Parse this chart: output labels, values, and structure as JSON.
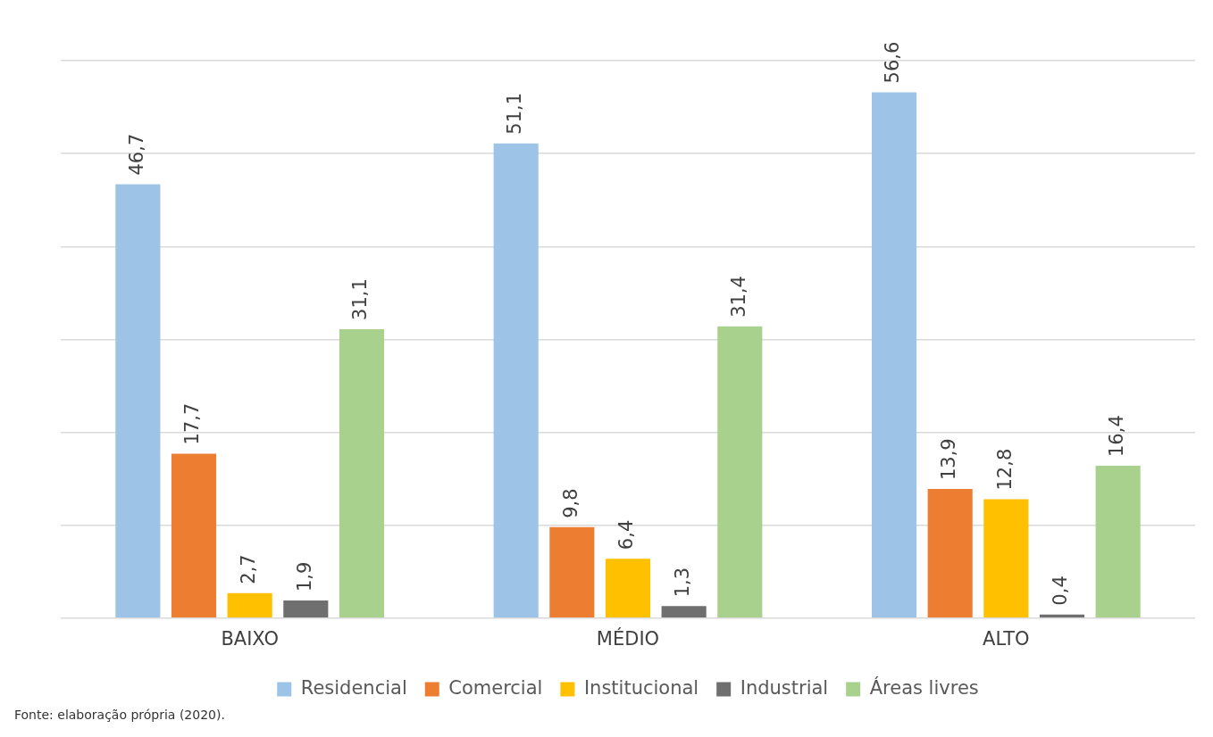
{
  "chart_data": {
    "type": "bar",
    "categories": [
      "BAIXO",
      "MÉDIO",
      "ALTO"
    ],
    "series": [
      {
        "name": "Residencial",
        "color": "#9dc3e6",
        "values": [
          46.7,
          51.1,
          56.6
        ],
        "value_labels": [
          "46,7",
          "51,1",
          "56,6"
        ]
      },
      {
        "name": "Comercial",
        "color": "#ed7d31",
        "values": [
          17.7,
          9.8,
          13.9
        ],
        "value_labels": [
          "17,7",
          "9,8",
          "13,9"
        ]
      },
      {
        "name": "Institucional",
        "color": "#ffc000",
        "values": [
          2.7,
          6.4,
          12.8
        ],
        "value_labels": [
          "2,7",
          "6,4",
          "12,8"
        ]
      },
      {
        "name": "Industrial",
        "color": "#6f6f6f",
        "values": [
          1.9,
          1.3,
          0.4
        ],
        "value_labels": [
          "1,9",
          "1,3",
          "0,4"
        ]
      },
      {
        "name": "Áreas livres",
        "color": "#a9d18e",
        "values": [
          31.1,
          31.4,
          16.4
        ],
        "value_labels": [
          "31,1",
          "31,4",
          "16,4"
        ]
      }
    ],
    "ylim": [
      0,
      60
    ],
    "yticks": [
      {
        "value": 0,
        "label": null
      },
      {
        "value": 10,
        "label": null
      },
      {
        "value": 20,
        "label": null
      },
      {
        "value": 30,
        "label": null
      },
      {
        "value": 40,
        "label": null
      },
      {
        "value": 50,
        "label": null
      },
      {
        "value": 60,
        "label": null
      }
    ],
    "tick_labels": "x",
    "grid": "y",
    "legend": "bottom",
    "annotations": [
      "Fonte: elaboração própria (2020)."
    ]
  }
}
